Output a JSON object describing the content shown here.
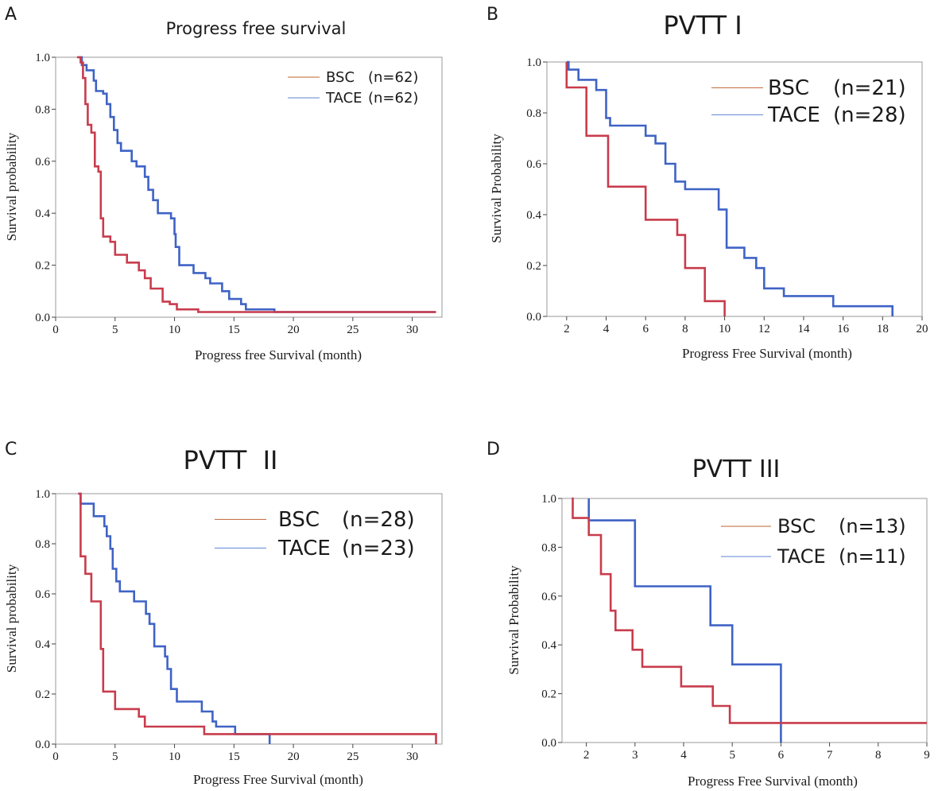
{
  "colors": {
    "bsc": "#c83c4c",
    "tace": "#3f63c5",
    "legend_bsc": "#c8744a",
    "legend_tace": "#6f93d8"
  },
  "chart_data": [
    {
      "id": "A",
      "panel_letter": "A",
      "type": "line",
      "title": "Progress free survival",
      "xlabel": "Progress free Survival",
      "xunit": "(month)",
      "ylabel": "Survival probability",
      "xlim": [
        0,
        32.5
      ],
      "ylim": [
        0,
        1
      ],
      "xticks": [
        0,
        5,
        10,
        15,
        20,
        25,
        30
      ],
      "xtick_labels": [
        "0",
        "5",
        "10",
        "15",
        "20",
        "25",
        "30"
      ],
      "yticks": [
        0,
        0.2,
        0.4,
        0.6,
        0.8,
        1.0
      ],
      "ytick_labels": [
        "0.0",
        "0.2",
        "0.4",
        "0.6",
        "0.8",
        "1.0"
      ],
      "legend": [
        {
          "name": "BSC",
          "n": "(n=62)"
        },
        {
          "name": "TACE",
          "n": "(n=62)"
        }
      ],
      "series": [
        {
          "name": "BSC",
          "steps": [
            [
              1.8,
              1.0
            ],
            [
              2.1,
              0.98
            ],
            [
              2.3,
              0.92
            ],
            [
              2.5,
              0.82
            ],
            [
              2.7,
              0.74
            ],
            [
              3.0,
              0.71
            ],
            [
              3.3,
              0.58
            ],
            [
              3.6,
              0.56
            ],
            [
              3.8,
              0.38
            ],
            [
              4.0,
              0.31
            ],
            [
              4.6,
              0.29
            ],
            [
              5.0,
              0.24
            ],
            [
              6.0,
              0.21
            ],
            [
              7.0,
              0.18
            ],
            [
              7.5,
              0.15
            ],
            [
              8.0,
              0.11
            ],
            [
              9.0,
              0.06
            ],
            [
              9.6,
              0.05
            ],
            [
              10.2,
              0.03
            ],
            [
              12.0,
              0.02
            ],
            [
              32.0,
              0.02
            ]
          ]
        },
        {
          "name": "TACE",
          "steps": [
            [
              1.9,
              1.0
            ],
            [
              2.2,
              0.97
            ],
            [
              2.6,
              0.95
            ],
            [
              3.2,
              0.91
            ],
            [
              3.4,
              0.87
            ],
            [
              4.0,
              0.86
            ],
            [
              4.3,
              0.82
            ],
            [
              4.6,
              0.77
            ],
            [
              4.9,
              0.72
            ],
            [
              5.2,
              0.67
            ],
            [
              5.5,
              0.64
            ],
            [
              6.4,
              0.6
            ],
            [
              6.8,
              0.58
            ],
            [
              7.5,
              0.54
            ],
            [
              7.8,
              0.49
            ],
            [
              8.2,
              0.45
            ],
            [
              8.6,
              0.4
            ],
            [
              9.7,
              0.38
            ],
            [
              10.0,
              0.32
            ],
            [
              10.1,
              0.27
            ],
            [
              10.4,
              0.2
            ],
            [
              11.6,
              0.17
            ],
            [
              12.6,
              0.15
            ],
            [
              13.0,
              0.13
            ],
            [
              14.0,
              0.1
            ],
            [
              14.6,
              0.07
            ],
            [
              15.6,
              0.05
            ],
            [
              16.0,
              0.03
            ],
            [
              18.4,
              0.02
            ],
            [
              32.0,
              0.02
            ]
          ]
        }
      ]
    },
    {
      "id": "B",
      "panel_letter": "B",
      "type": "line",
      "title": "PVTT I",
      "xlabel": "Progress Free Survival",
      "xunit": "(month)",
      "ylabel": "Survival Probability",
      "xlim": [
        1,
        20
      ],
      "ylim": [
        0,
        1
      ],
      "xticks": [
        2,
        4,
        6,
        8,
        10,
        12,
        14,
        16,
        18,
        20
      ],
      "xtick_labels": [
        "2",
        "4",
        "6",
        "8",
        "10",
        "12",
        "14",
        "16",
        "18",
        "20"
      ],
      "yticks": [
        0,
        0.2,
        0.4,
        0.6,
        0.8,
        1.0
      ],
      "ytick_labels": [
        "0.0",
        "0.2",
        "0.4",
        "0.6",
        "0.8",
        "1.0"
      ],
      "legend": [
        {
          "name": "BSC",
          "n": "(n=21)"
        },
        {
          "name": "TACE",
          "n": "(n=28)"
        }
      ],
      "series": [
        {
          "name": "BSC",
          "steps": [
            [
              2.0,
              0.9
            ],
            [
              3.0,
              0.71
            ],
            [
              4.1,
              0.51
            ],
            [
              6.0,
              0.38
            ],
            [
              7.6,
              0.32
            ],
            [
              8.0,
              0.19
            ],
            [
              9.0,
              0.06
            ],
            [
              10.0,
              0.0
            ]
          ]
        },
        {
          "name": "TACE",
          "steps": [
            [
              2.0,
              1.0
            ],
            [
              2.1,
              0.97
            ],
            [
              2.6,
              0.93
            ],
            [
              3.5,
              0.89
            ],
            [
              4.0,
              0.78
            ],
            [
              4.2,
              0.75
            ],
            [
              6.0,
              0.71
            ],
            [
              6.5,
              0.68
            ],
            [
              7.0,
              0.6
            ],
            [
              7.5,
              0.53
            ],
            [
              8.0,
              0.5
            ],
            [
              9.7,
              0.42
            ],
            [
              10.1,
              0.27
            ],
            [
              11.0,
              0.23
            ],
            [
              11.6,
              0.19
            ],
            [
              12.0,
              0.11
            ],
            [
              13.0,
              0.08
            ],
            [
              15.5,
              0.04
            ],
            [
              18.5,
              0.0
            ]
          ]
        }
      ]
    },
    {
      "id": "C",
      "panel_letter": "C",
      "type": "line",
      "title": "PVTT  II",
      "xlabel": "Progress Free Survival",
      "xunit": "(month)",
      "ylabel": "Survival probability",
      "xlim": [
        0,
        32.5
      ],
      "ylim": [
        0,
        1
      ],
      "xticks": [
        0,
        5,
        10,
        15,
        20,
        25,
        30
      ],
      "xtick_labels": [
        "0",
        "5",
        "10",
        "15",
        "20",
        "25",
        "30"
      ],
      "yticks": [
        0,
        0.2,
        0.4,
        0.6,
        0.8,
        1.0
      ],
      "ytick_labels": [
        "0.0",
        "0.2",
        "0.4",
        "0.6",
        "0.8",
        "1.0"
      ],
      "legend": [
        {
          "name": "BSC",
          "n": "(n=28)"
        },
        {
          "name": "TACE",
          "n": "(n=23)"
        }
      ],
      "series": [
        {
          "name": "BSC",
          "steps": [
            [
              1.9,
              1.0
            ],
            [
              2.1,
              0.75
            ],
            [
              2.5,
              0.68
            ],
            [
              3.0,
              0.57
            ],
            [
              3.8,
              0.38
            ],
            [
              4.0,
              0.21
            ],
            [
              5.0,
              0.14
            ],
            [
              7.0,
              0.11
            ],
            [
              7.5,
              0.07
            ],
            [
              12.5,
              0.04
            ],
            [
              32.0,
              0.0
            ]
          ]
        },
        {
          "name": "TACE",
          "steps": [
            [
              1.9,
              1.0
            ],
            [
              2.1,
              0.96
            ],
            [
              3.2,
              0.91
            ],
            [
              4.1,
              0.87
            ],
            [
              4.3,
              0.83
            ],
            [
              4.6,
              0.78
            ],
            [
              4.8,
              0.7
            ],
            [
              5.1,
              0.65
            ],
            [
              5.4,
              0.61
            ],
            [
              6.6,
              0.57
            ],
            [
              7.6,
              0.52
            ],
            [
              7.9,
              0.48
            ],
            [
              8.3,
              0.39
            ],
            [
              9.2,
              0.35
            ],
            [
              9.4,
              0.3
            ],
            [
              9.7,
              0.22
            ],
            [
              10.2,
              0.17
            ],
            [
              12.3,
              0.13
            ],
            [
              13.2,
              0.09
            ],
            [
              13.5,
              0.07
            ],
            [
              15.1,
              0.04
            ],
            [
              18.0,
              0.0
            ]
          ]
        }
      ]
    },
    {
      "id": "D",
      "panel_letter": "D",
      "type": "line",
      "title": "PVTT III",
      "xlabel": "Progress Free Survival",
      "xunit": "(month)",
      "ylabel": "Survival Probability",
      "xlim": [
        1.5,
        9
      ],
      "ylim": [
        0,
        1
      ],
      "xticks": [
        2,
        3,
        4,
        5,
        6,
        7,
        8,
        9
      ],
      "xtick_labels": [
        "2",
        "3",
        "4",
        "5",
        "6",
        "7",
        "8",
        "9"
      ],
      "yticks": [
        0,
        0.2,
        0.4,
        0.6,
        0.8,
        1.0
      ],
      "ytick_labels": [
        "0.0",
        "0.2",
        "0.4",
        "0.6",
        "0.8",
        "1.0"
      ],
      "legend": [
        {
          "name": "BSC",
          "n": "(n=13)"
        },
        {
          "name": "TACE",
          "n": "(n=11)"
        }
      ],
      "series": [
        {
          "name": "BSC",
          "steps": [
            [
              1.7,
              1.0
            ],
            [
              1.72,
              0.92
            ],
            [
              2.05,
              0.85
            ],
            [
              2.3,
              0.69
            ],
            [
              2.5,
              0.54
            ],
            [
              2.6,
              0.46
            ],
            [
              2.95,
              0.38
            ],
            [
              3.15,
              0.31
            ],
            [
              3.95,
              0.23
            ],
            [
              4.6,
              0.15
            ],
            [
              4.95,
              0.08
            ],
            [
              9.0,
              0.08
            ]
          ]
        },
        {
          "name": "TACE",
          "steps": [
            [
              2.05,
              1.0
            ],
            [
              2.05,
              0.91
            ],
            [
              3.0,
              0.64
            ],
            [
              4.55,
              0.48
            ],
            [
              5.0,
              0.32
            ],
            [
              6.0,
              0.0
            ]
          ]
        }
      ]
    }
  ]
}
